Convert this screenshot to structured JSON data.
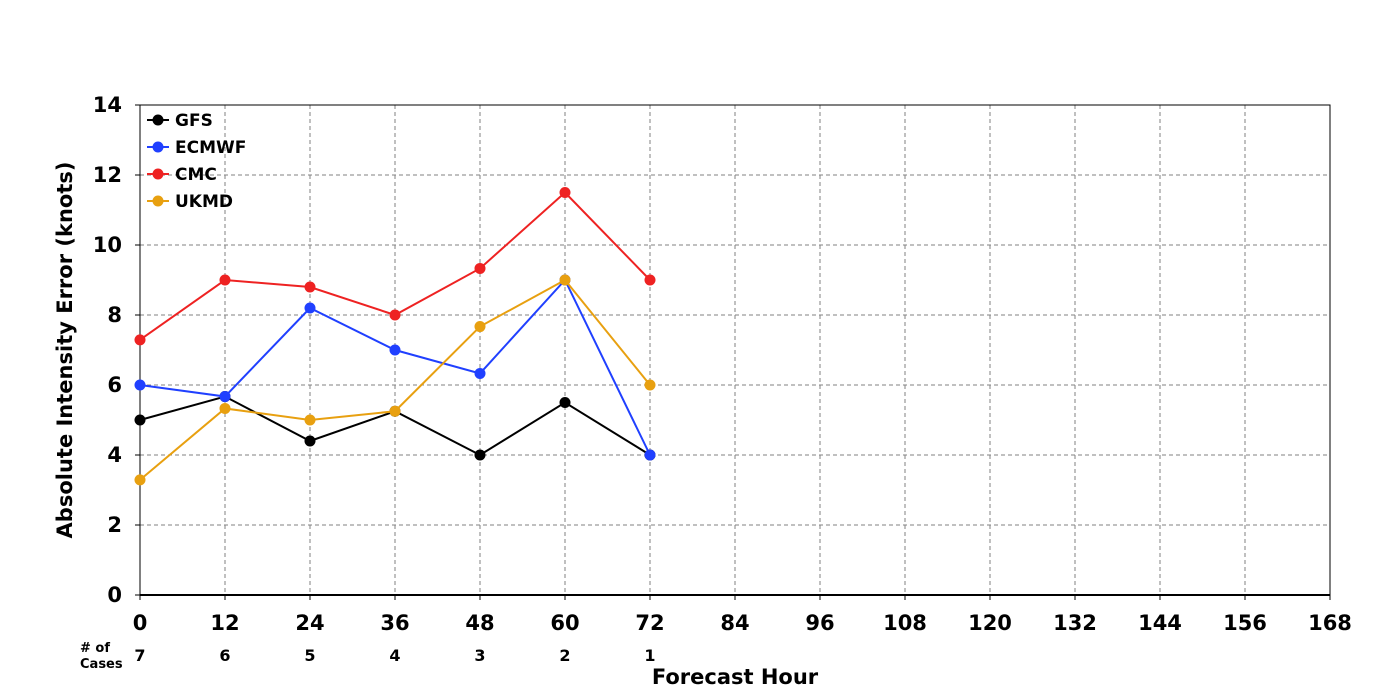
{
  "chart_data": {
    "type": "line",
    "xlabel": "Forecast Hour",
    "ylabel": "Absolute Intensity Error (knots)",
    "x_ticks": [
      0,
      12,
      24,
      36,
      48,
      60,
      72,
      84,
      96,
      108,
      120,
      132,
      144,
      156,
      168
    ],
    "y_ticks": [
      0,
      2,
      4,
      6,
      8,
      10,
      12,
      14
    ],
    "xlim": [
      0,
      168
    ],
    "ylim": [
      0,
      14
    ],
    "grid": true,
    "legend_position": "top-left",
    "cases_label_line1": "# of",
    "cases_label_line2": "Cases",
    "cases": [
      {
        "x": 0,
        "n": "7"
      },
      {
        "x": 12,
        "n": "6"
      },
      {
        "x": 24,
        "n": "5"
      },
      {
        "x": 36,
        "n": "4"
      },
      {
        "x": 48,
        "n": "3"
      },
      {
        "x": 60,
        "n": "2"
      },
      {
        "x": 72,
        "n": "1"
      }
    ],
    "x": [
      0,
      12,
      24,
      36,
      48,
      60,
      72
    ],
    "series": [
      {
        "name": "GFS",
        "color": "#000000",
        "values": [
          5.0,
          5.67,
          4.4,
          5.25,
          4.0,
          5.5,
          4.0
        ]
      },
      {
        "name": "ECMWF",
        "color": "#2040ff",
        "values": [
          6.0,
          5.67,
          8.2,
          7.0,
          6.33,
          9.0,
          4.0
        ]
      },
      {
        "name": "CMC",
        "color": "#ee2222",
        "values": [
          7.29,
          9.0,
          8.8,
          8.0,
          9.33,
          11.5,
          9.0
        ]
      },
      {
        "name": "UKMD",
        "color": "#e8a010",
        "values": [
          3.29,
          5.33,
          5.0,
          5.25,
          7.67,
          9.0,
          6.0
        ]
      }
    ]
  }
}
